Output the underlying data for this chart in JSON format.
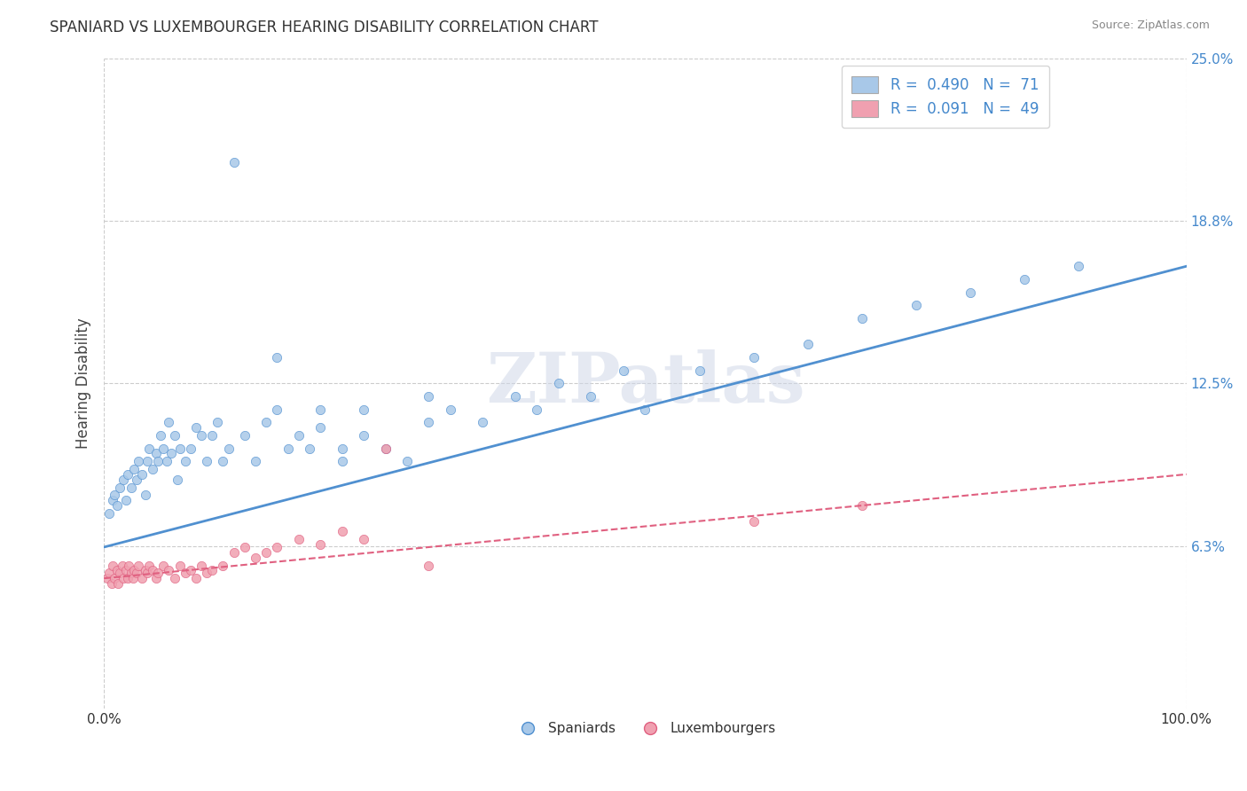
{
  "title": "SPANIARD VS LUXEMBOURGER HEARING DISABILITY CORRELATION CHART",
  "source": "Source: ZipAtlas.com",
  "ylabel": "Hearing Disability",
  "xlim": [
    0.0,
    1.0
  ],
  "ylim": [
    0.0,
    0.25
  ],
  "yticks": [
    0.0625,
    0.125,
    0.1875,
    0.25
  ],
  "ytick_labels": [
    "6.3%",
    "12.5%",
    "18.8%",
    "25.0%"
  ],
  "xtick_labels": [
    "0.0%",
    "100.0%"
  ],
  "grid_color": "#cccccc",
  "spaniards_color": "#a8c8e8",
  "luxembourgers_color": "#f0a0b0",
  "blue_line_color": "#5090d0",
  "pink_line_color": "#e06080",
  "r_spaniards": 0.49,
  "n_spaniards": 71,
  "r_luxembourgers": 0.091,
  "n_luxembourgers": 49,
  "watermark": "ZIPatlas",
  "sp_intercept": 0.062,
  "sp_slope": 0.108,
  "lu_intercept": 0.05,
  "lu_slope": 0.04,
  "spaniards_x": [
    0.005,
    0.008,
    0.01,
    0.012,
    0.015,
    0.018,
    0.02,
    0.022,
    0.025,
    0.028,
    0.03,
    0.032,
    0.035,
    0.038,
    0.04,
    0.042,
    0.045,
    0.048,
    0.05,
    0.052,
    0.055,
    0.058,
    0.06,
    0.062,
    0.065,
    0.068,
    0.07,
    0.075,
    0.08,
    0.085,
    0.09,
    0.095,
    0.1,
    0.105,
    0.11,
    0.115,
    0.12,
    0.13,
    0.14,
    0.15,
    0.16,
    0.17,
    0.18,
    0.19,
    0.2,
    0.22,
    0.24,
    0.26,
    0.28,
    0.3,
    0.32,
    0.35,
    0.38,
    0.4,
    0.42,
    0.45,
    0.48,
    0.5,
    0.55,
    0.6,
    0.65,
    0.7,
    0.75,
    0.8,
    0.85,
    0.9,
    0.22,
    0.16,
    0.24,
    0.3,
    0.2
  ],
  "spaniards_y": [
    0.075,
    0.08,
    0.082,
    0.078,
    0.085,
    0.088,
    0.08,
    0.09,
    0.085,
    0.092,
    0.088,
    0.095,
    0.09,
    0.082,
    0.095,
    0.1,
    0.092,
    0.098,
    0.095,
    0.105,
    0.1,
    0.095,
    0.11,
    0.098,
    0.105,
    0.088,
    0.1,
    0.095,
    0.1,
    0.108,
    0.105,
    0.095,
    0.105,
    0.11,
    0.095,
    0.1,
    0.21,
    0.105,
    0.095,
    0.11,
    0.115,
    0.1,
    0.105,
    0.1,
    0.108,
    0.095,
    0.105,
    0.1,
    0.095,
    0.11,
    0.115,
    0.11,
    0.12,
    0.115,
    0.125,
    0.12,
    0.13,
    0.115,
    0.13,
    0.135,
    0.14,
    0.15,
    0.155,
    0.16,
    0.165,
    0.17,
    0.1,
    0.135,
    0.115,
    0.12,
    0.115
  ],
  "luxembourgers_x": [
    0.003,
    0.005,
    0.007,
    0.008,
    0.01,
    0.012,
    0.013,
    0.015,
    0.017,
    0.018,
    0.02,
    0.022,
    0.023,
    0.025,
    0.027,
    0.028,
    0.03,
    0.032,
    0.035,
    0.038,
    0.04,
    0.042,
    0.045,
    0.048,
    0.05,
    0.055,
    0.06,
    0.065,
    0.07,
    0.075,
    0.08,
    0.085,
    0.09,
    0.095,
    0.1,
    0.11,
    0.12,
    0.13,
    0.14,
    0.15,
    0.16,
    0.18,
    0.2,
    0.22,
    0.24,
    0.26,
    0.3,
    0.6,
    0.7
  ],
  "luxembourgers_y": [
    0.05,
    0.052,
    0.048,
    0.055,
    0.05,
    0.053,
    0.048,
    0.052,
    0.055,
    0.05,
    0.053,
    0.05,
    0.055,
    0.052,
    0.05,
    0.053,
    0.052,
    0.055,
    0.05,
    0.053,
    0.052,
    0.055,
    0.053,
    0.05,
    0.052,
    0.055,
    0.053,
    0.05,
    0.055,
    0.052,
    0.053,
    0.05,
    0.055,
    0.052,
    0.053,
    0.055,
    0.06,
    0.062,
    0.058,
    0.06,
    0.062,
    0.065,
    0.063,
    0.068,
    0.065,
    0.1,
    0.055,
    0.072,
    0.078
  ]
}
